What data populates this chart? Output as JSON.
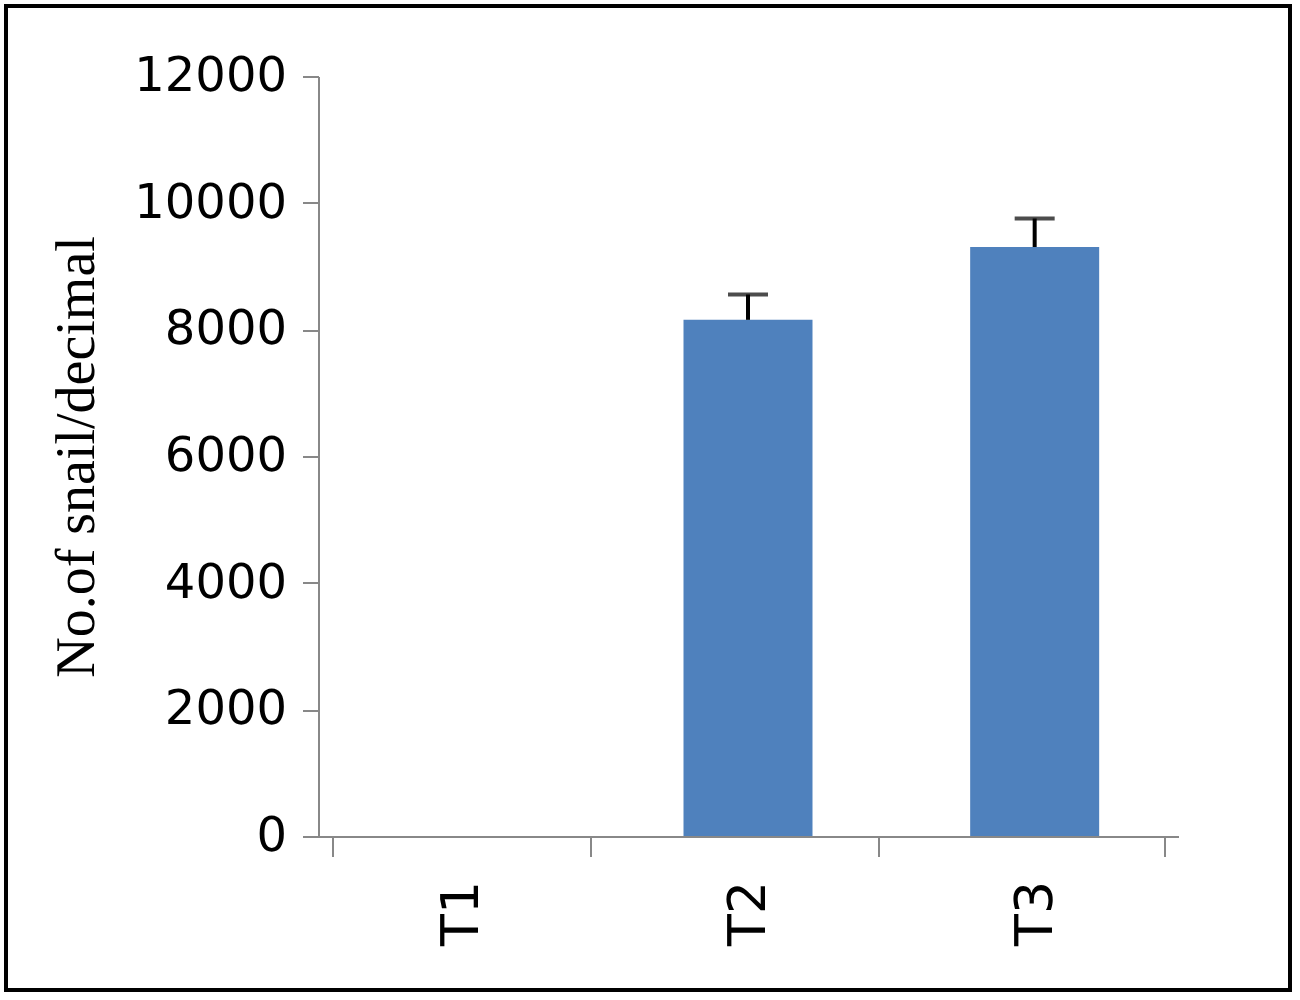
{
  "chart_data": {
    "type": "bar",
    "ylabel": "No.of snail/decimal",
    "categories": [
      "T1",
      "T2",
      "T3"
    ],
    "values": [
      0,
      8150,
      9300
    ],
    "errors": [
      null,
      400,
      450
    ],
    "color": "#4f81bd",
    "ylim": [
      0,
      12000
    ],
    "yticks": [
      0,
      2000,
      4000,
      6000,
      8000,
      10000,
      12000
    ],
    "grid": false
  }
}
